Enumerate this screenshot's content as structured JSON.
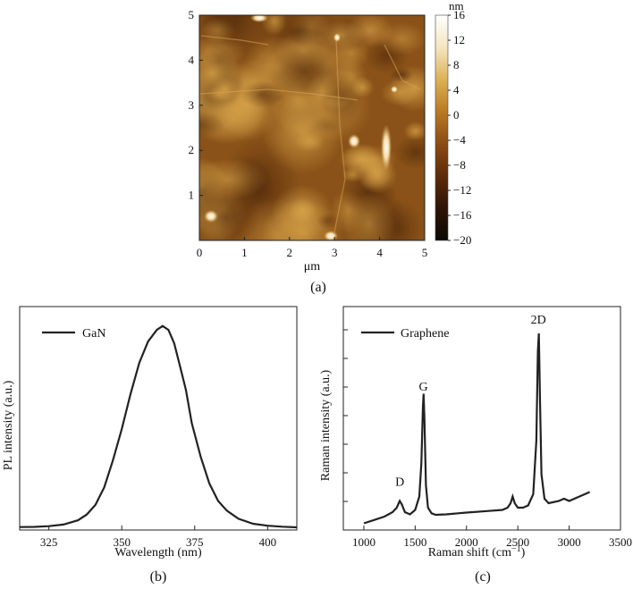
{
  "chart_data": [
    {
      "type": "heatmap",
      "caption": "(a)",
      "xlabel": "μm",
      "ylabel": "",
      "xlim": [
        0,
        5
      ],
      "ylim": [
        0,
        5
      ],
      "x_ticks": [
        "0",
        "1",
        "2",
        "3",
        "4",
        "5"
      ],
      "y_ticks": [
        "1",
        "2",
        "3",
        "4",
        "5"
      ],
      "colorbar": {
        "unit": "nm",
        "range": [
          -20,
          16
        ],
        "ticks": [
          "16",
          "12",
          "8",
          "4",
          "0",
          "−4",
          "−8",
          "−12",
          "−16",
          "−20"
        ],
        "colors": [
          "#0b0a02",
          "#2e1405",
          "#5e2b0a",
          "#8c4b12",
          "#b97a22",
          "#dcb156",
          "#f4e6c0",
          "#ffffff"
        ]
      },
      "image_colors": {
        "base": "#8a5218",
        "dark": "#5a2e0c",
        "light": "#c98f36",
        "bright": "#fff4d8"
      }
    },
    {
      "type": "line",
      "caption": "(b)",
      "xlabel": "Wavelength (nm)",
      "ylabel": "PL intensity (a.u.)",
      "xlim": [
        315,
        410
      ],
      "ylim": [
        0,
        1.15
      ],
      "x_ticks": [
        "325",
        "350",
        "375",
        "400"
      ],
      "legend": {
        "placement": "top-left"
      },
      "series": [
        {
          "name": "GaN",
          "color": "#222222",
          "x": [
            315,
            320,
            325,
            330,
            335,
            338,
            341,
            344,
            347,
            350,
            353,
            356,
            359,
            362,
            364,
            366,
            368,
            370,
            372,
            374,
            377,
            380,
            383,
            386,
            390,
            395,
            400,
            405,
            410
          ],
          "y": [
            0.015,
            0.016,
            0.02,
            0.028,
            0.05,
            0.08,
            0.13,
            0.22,
            0.36,
            0.52,
            0.7,
            0.86,
            0.97,
            1.03,
            1.05,
            1.03,
            0.96,
            0.84,
            0.72,
            0.55,
            0.38,
            0.24,
            0.15,
            0.1,
            0.058,
            0.032,
            0.022,
            0.017,
            0.014
          ]
        }
      ]
    },
    {
      "type": "line",
      "caption": "(c)",
      "xlabel": "Raman shift (cm",
      "xlabel_sup": "−1",
      "xlabel_suffix": ")",
      "ylabel": "Raman intensity (a.u.)",
      "xlim": [
        800,
        3500
      ],
      "ylim": [
        0,
        1.0
      ],
      "x_ticks": [
        "1000",
        "1500",
        "2000",
        "2500",
        "3000",
        "3500"
      ],
      "legend": {
        "placement": "top-left"
      },
      "annotations": [
        {
          "text": "D",
          "x": 1350,
          "y": 0.175
        },
        {
          "text": "G",
          "x": 1580,
          "y": 0.6
        },
        {
          "text": "2D",
          "x": 2700,
          "y": 0.9
        }
      ],
      "series": [
        {
          "name": "Graphene",
          "color": "#222222",
          "x": [
            1000,
            1100,
            1200,
            1280,
            1320,
            1350,
            1370,
            1400,
            1450,
            1500,
            1540,
            1560,
            1575,
            1582,
            1590,
            1605,
            1625,
            1660,
            1700,
            1800,
            2000,
            2200,
            2350,
            2400,
            2430,
            2450,
            2470,
            2500,
            2550,
            2600,
            2650,
            2680,
            2695,
            2705,
            2715,
            2730,
            2760,
            2800,
            2900,
            2950,
            3000,
            3100,
            3200
          ],
          "y": [
            0.03,
            0.045,
            0.06,
            0.08,
            0.1,
            0.13,
            0.115,
            0.08,
            0.07,
            0.09,
            0.15,
            0.3,
            0.55,
            0.61,
            0.5,
            0.2,
            0.1,
            0.075,
            0.068,
            0.07,
            0.078,
            0.085,
            0.09,
            0.1,
            0.12,
            0.15,
            0.12,
            0.1,
            0.1,
            0.11,
            0.16,
            0.4,
            0.8,
            0.88,
            0.6,
            0.25,
            0.14,
            0.12,
            0.13,
            0.14,
            0.13,
            0.15,
            0.17
          ]
        }
      ]
    }
  ]
}
